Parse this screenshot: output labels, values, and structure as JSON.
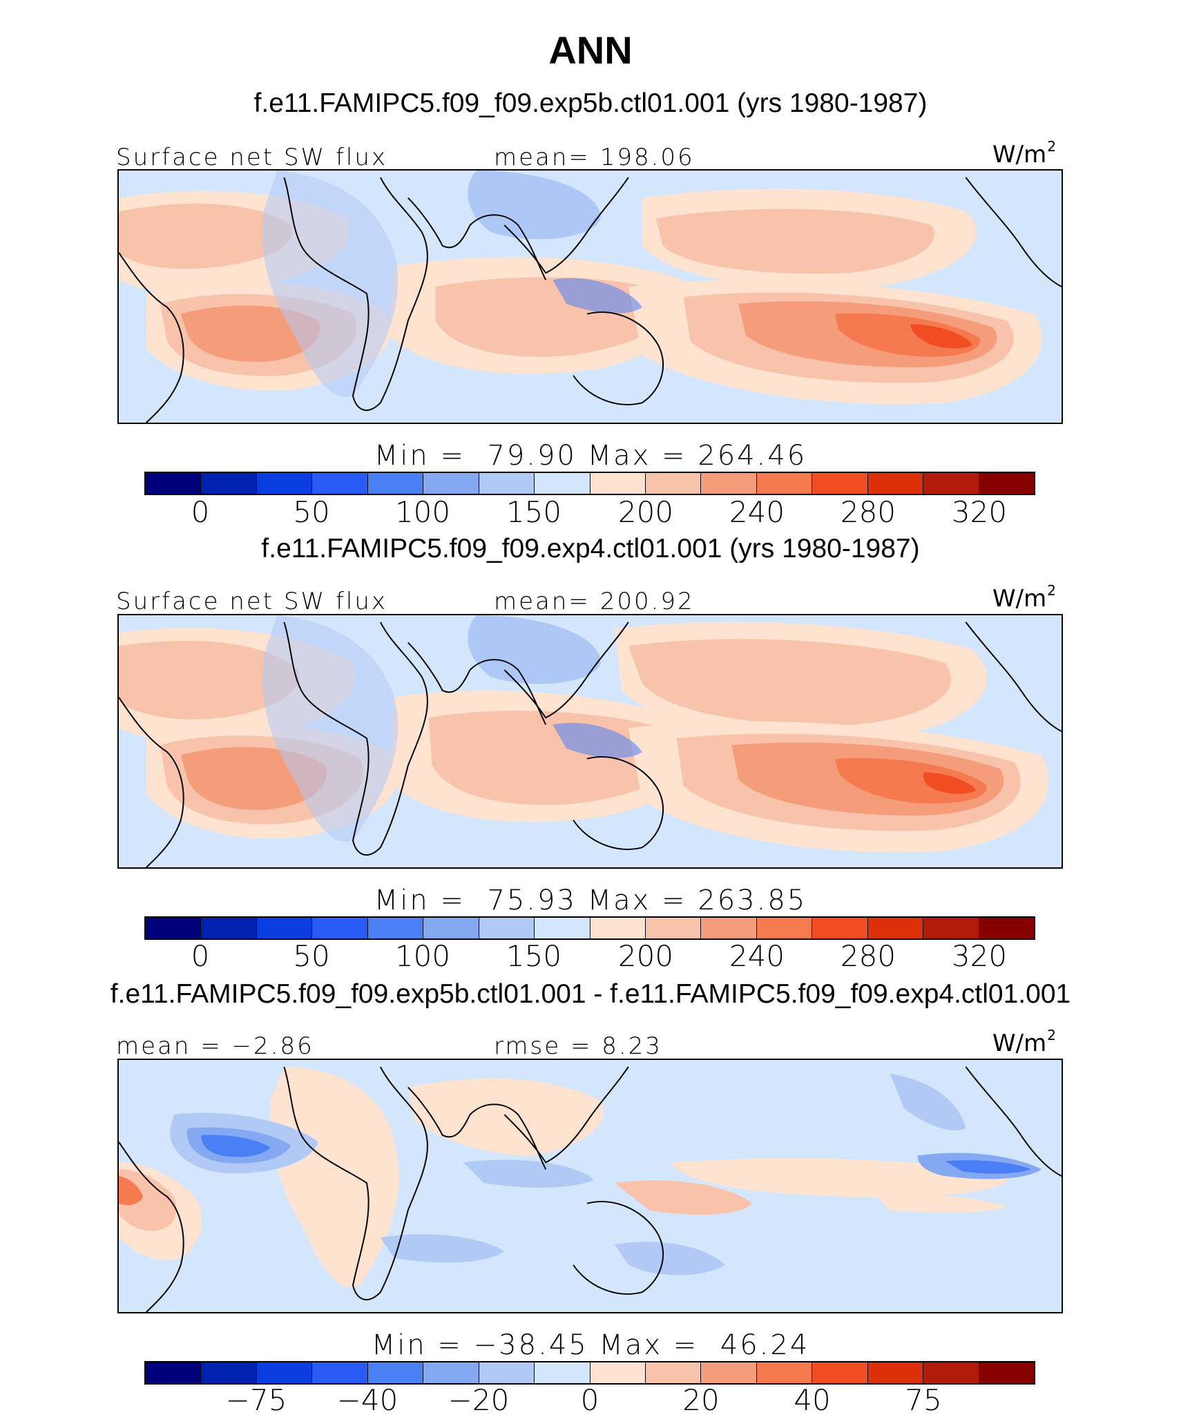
{
  "figure": {
    "title": "ANN",
    "panels": [
      {
        "case_title": "f.e11.FAMIPC5.f09_f09.exp5b.ctl01.001 (yrs 1980-1987)",
        "left_label": "Surface net SW flux",
        "center_label": "mean= 198.06",
        "units": "W/m",
        "units_sup": "2",
        "minmax": "Min =  79.90 Max = 264.46",
        "colorbar_ticks": [
          "0",
          "50",
          "100",
          "150",
          "200",
          "240",
          "280",
          "320"
        ]
      },
      {
        "case_title": "f.e11.FAMIPC5.f09_f09.exp4.ctl01.001 (yrs 1980-1987)",
        "left_label": "Surface net SW flux",
        "center_label": "mean= 200.92",
        "units": "W/m",
        "units_sup": "2",
        "minmax": "Min =  75.93 Max = 263.85",
        "colorbar_ticks": [
          "0",
          "50",
          "100",
          "150",
          "200",
          "240",
          "280",
          "320"
        ]
      },
      {
        "case_title": "f.e11.FAMIPC5.f09_f09.exp5b.ctl01.001 - f.e11.FAMIPC5.f09_f09.exp4.ctl01.001",
        "left_label": "mean =  −2.86",
        "center_label": "rmse =   8.23",
        "units": "W/m",
        "units_sup": "2",
        "minmax": "Min = −38.45 Max =  46.24",
        "colorbar_ticks": [
          "−75",
          "−40",
          "−20",
          "0",
          "20",
          "40",
          "75"
        ]
      }
    ],
    "colorbar_colors": [
      "#00007d",
      "#0021ad",
      "#0a3ee0",
      "#2a5cf5",
      "#4a7ff5",
      "#85a8f2",
      "#b0c9f5",
      "#d4e6fb",
      "#fde3d0",
      "#f9c3ab",
      "#f59c7a",
      "#f57a50",
      "#f04e22",
      "#dd2f0a",
      "#b21a0a",
      "#870000"
    ]
  }
}
